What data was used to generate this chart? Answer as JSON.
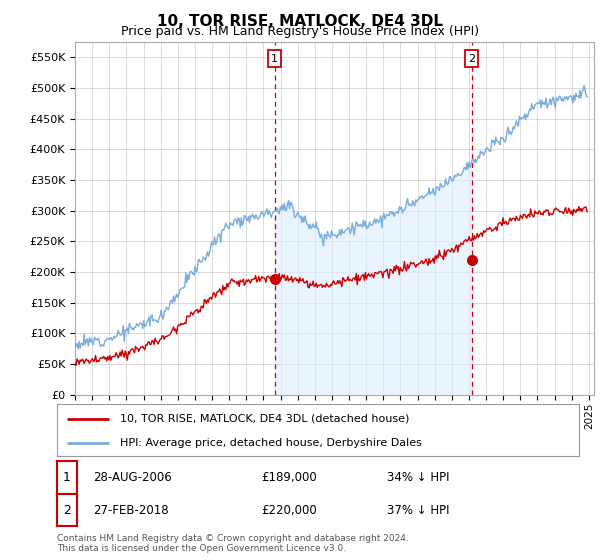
{
  "title": "10, TOR RISE, MATLOCK, DE4 3DL",
  "subtitle": "Price paid vs. HM Land Registry's House Price Index (HPI)",
  "ylabel_ticks": [
    "£0",
    "£50K",
    "£100K",
    "£150K",
    "£200K",
    "£250K",
    "£300K",
    "£350K",
    "£400K",
    "£450K",
    "£500K",
    "£550K"
  ],
  "ytick_values": [
    0,
    50000,
    100000,
    150000,
    200000,
    250000,
    300000,
    350000,
    400000,
    450000,
    500000,
    550000
  ],
  "ylim": [
    0,
    575000
  ],
  "sale1_date": 2006.65,
  "sale1_price": 189000,
  "sale2_date": 2018.15,
  "sale2_price": 220000,
  "vline1_x": 2006.65,
  "vline2_x": 2018.15,
  "legend_line1": "10, TOR RISE, MATLOCK, DE4 3DL (detached house)",
  "legend_line2": "HPI: Average price, detached house, Derbyshire Dales",
  "table_row1": [
    "1",
    "28-AUG-2006",
    "£189,000",
    "34% ↓ HPI"
  ],
  "table_row2": [
    "2",
    "27-FEB-2018",
    "£220,000",
    "37% ↓ HPI"
  ],
  "footnote": "Contains HM Land Registry data © Crown copyright and database right 2024.\nThis data is licensed under the Open Government Licence v3.0.",
  "line_color_red": "#cc0000",
  "line_color_blue": "#7aacdc",
  "fill_color_blue": "#ddeeff",
  "background_color": "#ffffff",
  "grid_color": "#cccccc",
  "vline_color": "#cc0000",
  "xmin": 1995.0,
  "xmax": 2025.3
}
